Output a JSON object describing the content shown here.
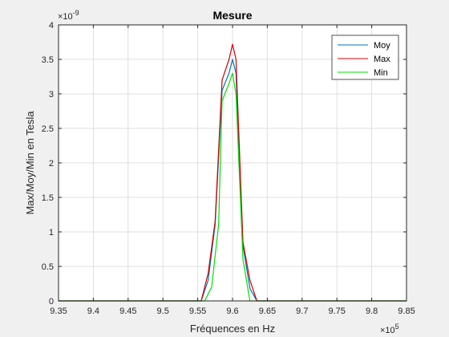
{
  "chart_data": {
    "type": "line",
    "title": "Mesure",
    "xlabel": "Fréquences en Hz",
    "ylabel": "Max/Moy/Min en Tesla",
    "x_exponent": "×10",
    "x_exponent_power": "5",
    "y_exponent": "×10",
    "y_exponent_power": "-9",
    "xlim": [
      935000,
      985000
    ],
    "ylim": [
      0,
      4e-09
    ],
    "x_ticks": [
      935000,
      940000,
      945000,
      950000,
      955000,
      960000,
      965000,
      970000,
      975000,
      980000,
      985000
    ],
    "x_tick_labels": [
      "9.35",
      "9.4",
      "9.45",
      "9.5",
      "9.55",
      "9.6",
      "9.65",
      "9.7",
      "9.75",
      "9.8",
      "9.85"
    ],
    "y_ticks": [
      0,
      5e-10,
      1e-09,
      1.5e-09,
      2e-09,
      2.5e-09,
      3e-09,
      3.5e-09,
      4e-09
    ],
    "y_tick_labels": [
      "0",
      "0.5",
      "1",
      "1.5",
      "2",
      "2.5",
      "3",
      "3.5",
      "4"
    ],
    "grid": true,
    "legend_position": "top-right",
    "series": [
      {
        "name": "Moy",
        "color": "#0072bd",
        "x": [
          935000,
          955500,
          956500,
          957500,
          958500,
          959500,
          960000,
          960500,
          961500,
          962500,
          963500,
          985000
        ],
        "y": [
          0,
          0,
          3e-10,
          1.1e-09,
          3.05e-09,
          3.3e-09,
          3.5e-09,
          3.3e-09,
          8e-10,
          1.8e-10,
          0,
          0
        ]
      },
      {
        "name": "Max",
        "color": "#d40000",
        "x": [
          935000,
          955500,
          956500,
          957500,
          958500,
          959500,
          960000,
          960500,
          961500,
          962500,
          963500,
          985000
        ],
        "y": [
          0,
          0,
          4e-10,
          1.15e-09,
          3.2e-09,
          3.5e-09,
          3.72e-09,
          3.5e-09,
          8.5e-10,
          3e-10,
          0,
          0
        ]
      },
      {
        "name": "Min",
        "color": "#00e000",
        "x": [
          935000,
          956000,
          957000,
          958000,
          958500,
          959500,
          960000,
          960500,
          961500,
          962500,
          985000
        ],
        "y": [
          0,
          0,
          2e-10,
          1.1e-09,
          2.9e-09,
          3.15e-09,
          3.3e-09,
          3e-09,
          6e-10,
          0,
          0
        ]
      }
    ]
  }
}
